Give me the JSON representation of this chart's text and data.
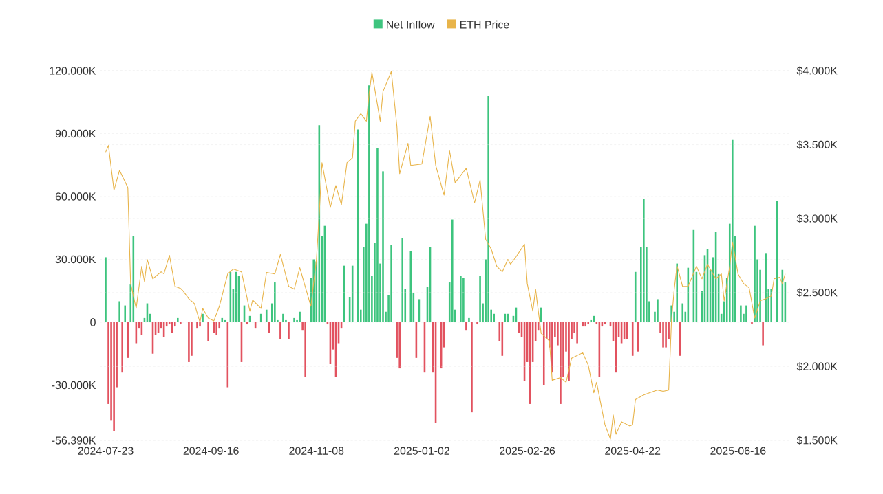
{
  "chart_data": {
    "type": "bar",
    "categories": [
      "2024-07-23",
      null,
      null,
      null,
      null,
      null,
      null,
      null,
      null,
      null,
      null,
      null,
      null,
      null,
      null,
      null,
      null,
      null,
      null,
      null,
      null,
      null,
      null,
      null,
      null,
      null,
      null,
      null,
      null,
      null,
      null,
      null,
      null,
      null,
      null,
      null,
      null,
      null,
      "2024-09-16",
      null,
      null,
      null,
      null,
      null,
      null,
      null,
      null,
      null,
      null,
      null,
      null,
      null,
      null,
      null,
      null,
      null,
      null,
      null,
      null,
      null,
      null,
      null,
      null,
      null,
      null,
      null,
      null,
      null,
      null,
      null,
      null,
      null,
      null,
      null,
      null,
      null,
      "2024-11-08",
      null,
      null,
      null,
      null,
      null,
      null,
      null,
      null,
      null,
      null,
      null,
      null,
      null,
      null,
      null,
      null,
      null,
      null,
      null,
      null,
      null,
      null,
      null,
      null,
      null,
      null,
      null,
      null,
      null,
      null,
      null,
      null,
      null,
      null,
      null,
      null,
      null,
      "2025-01-02",
      null,
      null,
      null,
      null,
      null,
      null,
      null,
      null,
      null,
      null,
      null,
      null,
      null,
      null,
      null,
      null,
      null,
      null,
      null,
      null,
      null,
      null,
      null,
      null,
      null,
      null,
      null,
      null,
      null,
      null,
      null,
      null,
      null,
      null,
      null,
      null,
      null,
      "2025-02-26",
      null,
      null,
      null,
      null,
      null,
      null,
      null,
      null,
      null,
      null,
      null,
      null,
      null,
      null,
      null,
      null,
      null,
      null,
      null,
      null,
      null,
      null,
      null,
      null,
      null,
      null,
      null,
      null,
      null,
      null,
      null,
      null,
      null,
      null,
      null,
      null,
      null,
      "2025-04-22",
      null,
      null,
      null,
      null,
      null,
      null,
      null,
      null,
      null,
      null,
      null,
      null,
      null,
      null,
      null,
      null,
      null,
      null,
      null,
      null,
      null,
      null,
      null,
      null,
      null,
      null,
      null,
      null,
      null,
      null,
      null,
      null,
      null,
      null,
      null,
      null,
      null,
      "2025-06-16",
      null,
      null,
      null,
      null,
      null,
      null,
      null,
      null,
      null,
      null,
      null,
      null,
      null,
      null,
      null,
      null,
      null
    ],
    "series": [
      {
        "name": "Net Inflow",
        "color": "#3dc47e",
        "values": [
          31000,
          -39000,
          -47000,
          -52000,
          -31000,
          10000,
          -24000,
          8000,
          -17000,
          18000,
          41000,
          -10000,
          -3000,
          -6000,
          2000,
          9000,
          4000,
          -15000,
          -6000,
          -5000,
          -3000,
          -7000,
          -2000,
          -1000,
          -5000,
          -2000,
          2000,
          -1000,
          0,
          0,
          -19000,
          -16000,
          0,
          -3000,
          -2000,
          4000,
          0,
          -9000,
          0,
          -5000,
          -6000,
          -3000,
          2000,
          1000,
          -31000,
          24000,
          16000,
          24000,
          22000,
          -19000,
          8000,
          -1000,
          3000,
          0,
          -3000,
          0,
          4000,
          0,
          6000,
          -5000,
          9000,
          19000,
          1000,
          -8000,
          4000,
          1000,
          -8000,
          0,
          2000,
          1000,
          5000,
          -4000,
          -26000,
          0,
          21000,
          30000,
          29000,
          94000,
          41000,
          46000,
          -1000,
          -20000,
          -13000,
          -26000,
          -10000,
          -3000,
          27000,
          0,
          12000,
          27000,
          0,
          92000,
          6000,
          36000,
          47000,
          113000,
          22000,
          38000,
          83000,
          28000,
          72000,
          5000,
          13000,
          37000,
          0,
          -17000,
          -22000,
          40000,
          16000,
          0,
          34000,
          14000,
          -17000,
          11000,
          0,
          -24000,
          17000,
          36000,
          -24000,
          -48000,
          0,
          -22000,
          -12000,
          0,
          19000,
          49000,
          6000,
          0,
          22000,
          21000,
          -4000,
          2000,
          -43000,
          0,
          -1000,
          22000,
          9000,
          30000,
          108000,
          6000,
          4000,
          0,
          -9000,
          -16000,
          4000,
          4000,
          0,
          3000,
          7000,
          -5000,
          -7000,
          -28000,
          -19000,
          -39000,
          -19000,
          -9000,
          -4000,
          7000,
          -30000,
          -8000,
          -12000,
          -24000,
          -7000,
          -11000,
          -39000,
          -26000,
          -14000,
          -28000,
          -8000,
          -5000,
          -10000,
          0,
          -2000,
          -2000,
          -1000,
          1000,
          3000,
          -1000,
          -26000,
          -2000,
          -1000,
          0,
          -2000,
          -9000,
          -24000,
          -7000,
          -10000,
          -8000,
          -8000,
          0,
          -16000,
          24000,
          -14000,
          36000,
          59000,
          36000,
          10000,
          0,
          5000,
          11000,
          -5000,
          -12000,
          -12000,
          -8000,
          8000,
          5000,
          28000,
          -16000,
          9000,
          5000,
          26000,
          0,
          44000,
          24000,
          0,
          15000,
          32000,
          35000,
          25000,
          31000,
          43000,
          23000,
          4000,
          10000,
          21000,
          47000,
          87000,
          41000,
          0,
          8000,
          4000,
          8000,
          0,
          -1000,
          46000,
          30000,
          25000,
          -11000,
          33000,
          16000,
          16000,
          0,
          58000,
          0,
          25000,
          19000
        ],
        "colors": [
          "#3dc47e",
          "#e2525f",
          "#e2525f",
          "#e2525f",
          "#e2525f",
          "#3dc47e",
          "#e2525f",
          "#3dc47e",
          "#e2525f",
          "#3dc47e",
          "#3dc47e",
          "#e2525f",
          "#e2525f",
          "#e2525f",
          "#3dc47e",
          "#3dc47e",
          "#3dc47e",
          "#e2525f",
          "#e2525f",
          "#e2525f",
          "#e2525f",
          "#e2525f",
          "#e2525f",
          "#e2525f",
          "#e2525f",
          "#e2525f",
          "#3dc47e",
          "#e2525f",
          "#3dc47e",
          "#3dc47e",
          "#e2525f",
          "#e2525f",
          "#3dc47e",
          "#e2525f",
          "#e2525f",
          "#3dc47e",
          "#3dc47e",
          "#e2525f",
          "#3dc47e",
          "#e2525f",
          "#e2525f",
          "#e2525f",
          "#3dc47e",
          "#3dc47e",
          "#e2525f",
          "#3dc47e",
          "#3dc47e",
          "#3dc47e",
          "#3dc47e",
          "#e2525f",
          "#3dc47e",
          "#e2525f",
          "#3dc47e",
          "#3dc47e",
          "#e2525f",
          "#3dc47e",
          "#3dc47e",
          "#3dc47e",
          "#3dc47e",
          "#e2525f",
          "#3dc47e",
          "#3dc47e",
          "#3dc47e",
          "#e2525f",
          "#3dc47e",
          "#3dc47e",
          "#e2525f",
          "#3dc47e",
          "#3dc47e",
          "#3dc47e",
          "#3dc47e",
          "#e2525f",
          "#e2525f",
          "#3dc47e",
          "#3dc47e",
          "#3dc47e",
          "#3dc47e",
          "#3dc47e",
          "#3dc47e",
          "#3dc47e",
          "#e2525f",
          "#e2525f",
          "#e2525f",
          "#e2525f",
          "#e2525f",
          "#e2525f",
          "#3dc47e",
          "#3dc47e",
          "#3dc47e",
          "#3dc47e",
          "#3dc47e",
          "#3dc47e",
          "#3dc47e",
          "#3dc47e",
          "#3dc47e",
          "#3dc47e",
          "#3dc47e",
          "#3dc47e",
          "#3dc47e",
          "#3dc47e",
          "#3dc47e",
          "#3dc47e",
          "#3dc47e",
          "#3dc47e",
          "#3dc47e",
          "#e2525f",
          "#e2525f",
          "#3dc47e",
          "#3dc47e",
          "#3dc47e",
          "#3dc47e",
          "#3dc47e",
          "#e2525f",
          "#3dc47e",
          "#3dc47e",
          "#e2525f",
          "#3dc47e",
          "#3dc47e",
          "#e2525f",
          "#e2525f",
          "#3dc47e",
          "#e2525f",
          "#e2525f",
          "#3dc47e",
          "#3dc47e",
          "#3dc47e",
          "#3dc47e",
          "#3dc47e",
          "#3dc47e",
          "#3dc47e",
          "#e2525f",
          "#3dc47e",
          "#e2525f",
          "#3dc47e",
          "#e2525f",
          "#3dc47e",
          "#3dc47e",
          "#3dc47e",
          "#3dc47e",
          "#3dc47e",
          "#3dc47e",
          "#3dc47e",
          "#e2525f",
          "#e2525f",
          "#3dc47e",
          "#3dc47e",
          "#3dc47e",
          "#3dc47e",
          "#3dc47e",
          "#e2525f",
          "#e2525f",
          "#e2525f",
          "#e2525f",
          "#e2525f",
          "#e2525f",
          "#e2525f",
          "#e2525f",
          "#3dc47e",
          "#e2525f",
          "#e2525f",
          "#e2525f",
          "#e2525f",
          "#e2525f",
          "#e2525f",
          "#e2525f",
          "#e2525f",
          "#e2525f",
          "#e2525f",
          "#e2525f",
          "#e2525f",
          "#e2525f",
          "#3dc47e",
          "#e2525f",
          "#e2525f",
          "#e2525f",
          "#3dc47e",
          "#3dc47e",
          "#e2525f",
          "#e2525f",
          "#e2525f",
          "#e2525f",
          "#3dc47e",
          "#e2525f",
          "#e2525f",
          "#e2525f",
          "#e2525f",
          "#e2525f",
          "#e2525f",
          "#e2525f",
          "#3dc47e",
          "#e2525f",
          "#3dc47e",
          "#e2525f",
          "#3dc47e",
          "#3dc47e",
          "#3dc47e",
          "#3dc47e",
          "#3dc47e",
          "#3dc47e",
          "#3dc47e",
          "#e2525f",
          "#e2525f",
          "#e2525f",
          "#e2525f",
          "#3dc47e",
          "#3dc47e",
          "#3dc47e",
          "#e2525f",
          "#3dc47e",
          "#3dc47e",
          "#3dc47e",
          "#3dc47e",
          "#3dc47e",
          "#3dc47e",
          "#3dc47e",
          "#3dc47e",
          "#3dc47e",
          "#3dc47e",
          "#3dc47e",
          "#3dc47e",
          "#3dc47e",
          "#3dc47e",
          "#3dc47e",
          "#3dc47e",
          "#3dc47e",
          "#3dc47e",
          "#3dc47e",
          "#3dc47e",
          "#3dc47e",
          "#3dc47e",
          "#3dc47e",
          "#3dc47e",
          "#3dc47e",
          "#e2525f",
          "#3dc47e",
          "#3dc47e",
          "#3dc47e",
          "#e2525f",
          "#3dc47e",
          "#3dc47e",
          "#3dc47e",
          "#3dc47e",
          "#3dc47e",
          "#3dc47e",
          "#3dc47e",
          "#3dc47e"
        ]
      },
      {
        "name": "ETH Price",
        "type": "line",
        "axis": "y2",
        "color": "#e8b44a",
        "values": [
          3450,
          3495,
          null,
          3192,
          null,
          3327,
          null,
          null,
          3210,
          2561,
          null,
          2393,
          null,
          2678,
          2575,
          2724,
          null,
          2593,
          null,
          null,
          2640,
          2626,
          null,
          2752,
          null,
          2542,
          null,
          2528,
          2509,
          null,
          2458,
          null,
          2425,
          null,
          2299,
          2393,
          null,
          2327,
          null,
          2308,
          null,
          2407,
          null,
          null,
          2626,
          null,
          2659,
          null,
          null,
          2640,
          null,
          null,
          2374,
          2449,
          null,
          null,
          2393,
          null,
          2636,
          null,
          null,
          2626,
          null,
          2757,
          null,
          null,
          2542,
          null,
          2523,
          null,
          2668,
          null,
          null,
          null,
          2407,
          null,
          2724,
          3028,
          3378,
          null,
          null,
          3075,
          null,
          3224,
          null,
          3093,
          null,
          3378,
          null,
          3411,
          3659,
          null,
          3710,
          null,
          3659,
          3846,
          3990,
          null,
          null,
          3659,
          3860,
          null,
          null,
          3995,
          null,
          3626,
          3304,
          null,
          null,
          3509,
          3360,
          null,
          null,
          null,
          3369,
          null,
          null,
          3692,
          null,
          3360,
          null,
          null,
          3159,
          null,
          3458,
          null,
          3243,
          null,
          null,
          null,
          3341,
          null,
          null,
          3107,
          null,
          3262,
          null,
          2860,
          null,
          2794,
          null,
          2678,
          null,
          2640,
          null,
          2724,
          2692,
          null,
          2743,
          null,
          null,
          2827,
          2561,
          null,
          2374,
          2523,
          null,
          2224,
          null,
          null,
          2173,
          1907,
          null,
          null,
          1925,
          null,
          1893,
          null,
          2056,
          null,
          null,
          null,
          2093,
          null,
          2009,
          null,
          1822,
          1893,
          null,
          null,
          1607,
          null,
          1509,
          1673,
          1542,
          null,
          1626,
          null,
          null,
          1598,
          1607,
          1776,
          null,
          null,
          1808,
          null,
          1822,
          null,
          null,
          1841,
          null,
          1832,
          null,
          1841,
          2308,
          2523,
          2682,
          null,
          2542,
          null,
          2542,
          null,
          null,
          2678,
          null,
          2593,
          null,
          2692,
          null,
          null,
          2593,
          null,
          2626,
          2444,
          null,
          2678,
          2841,
          null,
          2626,
          null,
          2561,
          null,
          2532,
          null,
          2327,
          null,
          2444,
          null,
          2458,
          null,
          2477,
          2593,
          null,
          2603,
          2561,
          2626
        ]
      }
    ],
    "ylim": [
      -56390,
      120000
    ],
    "yticks": [
      {
        "value": 120000,
        "label": "120.000K"
      },
      {
        "value": 90000,
        "label": "90.000K"
      },
      {
        "value": 60000,
        "label": "60.000K"
      },
      {
        "value": 30000,
        "label": "30.000K"
      },
      0,
      {
        "value": -30000,
        "label": "-30.000K"
      },
      {
        "value": -56390,
        "label": "-56.390K"
      }
    ],
    "y2lim": [
      1500,
      4000
    ],
    "y2ticks": [
      {
        "value": 4000,
        "label": "$4.000K"
      },
      {
        "value": 3500,
        "label": "$3.500K"
      },
      {
        "value": 3000,
        "label": "$3.000K"
      },
      {
        "value": 2500,
        "label": "$2.500K"
      },
      {
        "value": 2000,
        "label": "$2.000K"
      },
      {
        "value": 1500,
        "label": "$1.500K"
      }
    ],
    "grid": "y",
    "legend": "top"
  }
}
